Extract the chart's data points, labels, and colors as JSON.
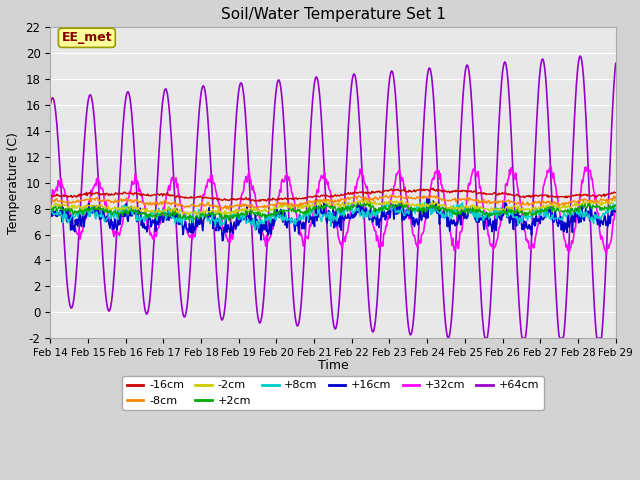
{
  "title": "Soil/Water Temperature Set 1",
  "xlabel": "Time",
  "ylabel": "Temperature (C)",
  "ylim": [
    -2,
    22
  ],
  "yticks": [
    -2,
    0,
    2,
    4,
    6,
    8,
    10,
    12,
    14,
    16,
    18,
    20,
    22
  ],
  "x_labels": [
    "Feb 14",
    "Feb 15",
    "Feb 16",
    "Feb 17",
    "Feb 18",
    "Feb 19",
    "Feb 20",
    "Feb 21",
    "Feb 22",
    "Feb 23",
    "Feb 24",
    "Feb 25",
    "Feb 26",
    "Feb 27",
    "Feb 28",
    "Feb 29"
  ],
  "series": [
    {
      "label": "-16cm",
      "color": "#cc0000",
      "base": 8.8,
      "amp": 0.12
    },
    {
      "label": "-8cm",
      "color": "#ff8800",
      "base": 8.3,
      "amp": 0.18
    },
    {
      "label": "-2cm",
      "color": "#cccc00",
      "base": 7.9,
      "amp": 0.22
    },
    {
      "label": "+2cm",
      "color": "#00aa00",
      "base": 7.6,
      "amp": 0.3
    },
    {
      "label": "+8cm",
      "color": "#00cccc",
      "base": 7.3,
      "amp": 0.55
    },
    {
      "label": "+16cm",
      "color": "#0000cc",
      "base": 7.0,
      "amp": 0.9
    },
    {
      "label": "+32cm",
      "color": "#ff00ff",
      "base": 8.0,
      "amp_day": 4.0
    },
    {
      "label": "+64cm",
      "color": "#9900cc",
      "base": 8.5,
      "amp_day": 11.5
    }
  ],
  "annotation_text": "EE_met",
  "annotation_color": "#880000",
  "annotation_bg": "#ffff99",
  "fig_facecolor": "#d3d3d3",
  "plot_facecolor": "#e8e8e8"
}
